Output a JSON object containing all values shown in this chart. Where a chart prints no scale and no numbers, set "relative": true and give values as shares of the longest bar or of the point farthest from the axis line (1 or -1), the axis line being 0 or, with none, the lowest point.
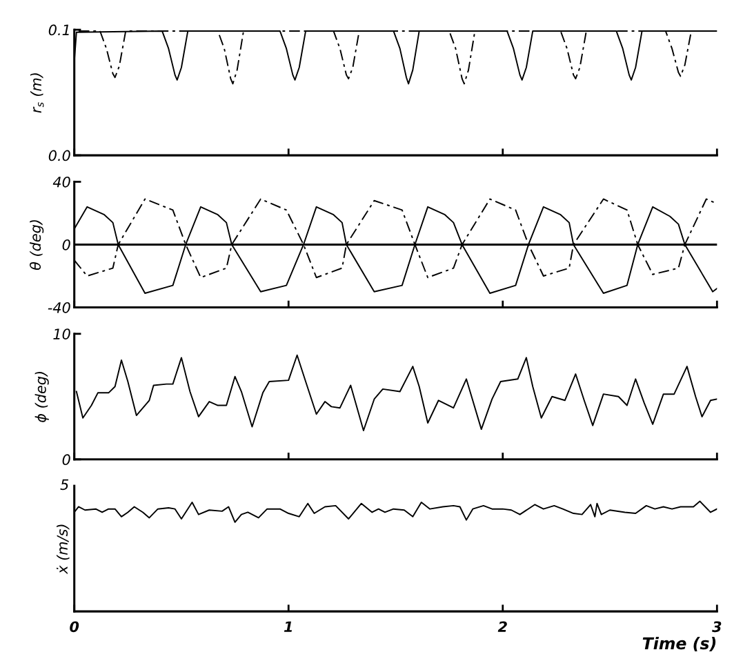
{
  "chart_data": [
    {
      "type": "line",
      "ylabel": "r$_{s}$ (m)",
      "xlim": [
        0,
        3
      ],
      "xticks": [
        0,
        1,
        2,
        3
      ],
      "ylim": [
        0,
        0.1
      ],
      "yticks": [
        {
          "value": 0,
          "label": "0.0"
        },
        0.1
      ],
      "tick_labels": "y",
      "grid": false,
      "series": [
        {
          "color": "#000000",
          "line_style": "solid",
          "x": [
            0,
            0.01,
            0.41,
            0.44,
            0.47,
            0.48,
            0.5,
            0.53,
            0.96,
            0.99,
            1.02,
            1.03,
            1.05,
            1.08,
            1.49,
            1.52,
            1.55,
            1.56,
            1.58,
            1.61,
            2.02,
            2.05,
            2.08,
            2.09,
            2.11,
            2.14,
            2.53,
            2.56,
            2.59,
            2.6,
            2.62,
            2.65,
            3.0
          ],
          "values": [
            0.075,
            0.098,
            0.099,
            0.085,
            0.064,
            0.06,
            0.07,
            0.099,
            0.099,
            0.085,
            0.064,
            0.06,
            0.07,
            0.099,
            0.099,
            0.085,
            0.062,
            0.057,
            0.068,
            0.099,
            0.099,
            0.085,
            0.064,
            0.06,
            0.07,
            0.099,
            0.099,
            0.085,
            0.064,
            0.06,
            0.07,
            0.099,
            0.099
          ]
        },
        {
          "color": "#000000",
          "line_style": "dashed",
          "x": [
            0.02,
            0.12,
            0.15,
            0.18,
            0.19,
            0.21,
            0.24,
            0.67,
            0.7,
            0.73,
            0.74,
            0.76,
            0.79,
            1.21,
            1.24,
            1.27,
            1.28,
            1.3,
            1.33,
            1.75,
            1.78,
            1.81,
            1.82,
            1.84,
            1.87,
            2.27,
            2.3,
            2.33,
            2.34,
            2.36,
            2.39,
            2.76,
            2.79,
            2.82,
            2.83,
            2.85,
            2.88,
            3.0
          ],
          "values": [
            0.099,
            0.099,
            0.085,
            0.065,
            0.062,
            0.071,
            0.099,
            0.099,
            0.085,
            0.061,
            0.057,
            0.068,
            0.099,
            0.099,
            0.085,
            0.064,
            0.061,
            0.07,
            0.099,
            0.099,
            0.085,
            0.061,
            0.057,
            0.068,
            0.099,
            0.099,
            0.085,
            0.064,
            0.061,
            0.07,
            0.099,
            0.099,
            0.085,
            0.066,
            0.063,
            0.072,
            0.099,
            0.099
          ]
        }
      ]
    },
    {
      "type": "line",
      "ylabel": "θ (deg)",
      "xlim": [
        0,
        3
      ],
      "xticks": [
        0,
        1,
        2,
        3
      ],
      "ylim": [
        -40,
        40
      ],
      "yticks": [
        -40,
        0,
        40
      ],
      "tick_labels": "y",
      "grid": false,
      "ref_lines": [
        {
          "axis": "y",
          "value": 0,
          "color": "#000000",
          "line_style": "solid"
        }
      ],
      "series": [
        {
          "color": "#000000",
          "line_style": "solid",
          "x": [
            0,
            0.06,
            0.14,
            0.18,
            0.205,
            0.33,
            0.46,
            0.52,
            0.59,
            0.67,
            0.71,
            0.735,
            0.87,
            0.99,
            1.07,
            1.13,
            1.21,
            1.25,
            1.27,
            1.4,
            1.53,
            1.59,
            1.65,
            1.73,
            1.77,
            1.81,
            1.94,
            2.06,
            2.12,
            2.19,
            2.27,
            2.31,
            2.33,
            2.47,
            2.58,
            2.63,
            2.7,
            2.78,
            2.82,
            2.85,
            2.98,
            3.0
          ],
          "values": [
            10,
            24,
            19,
            14,
            0,
            -31,
            -26,
            0,
            24,
            19,
            14,
            0,
            -30,
            -26,
            0,
            24,
            19,
            14,
            0,
            -30,
            -26,
            0,
            24,
            19,
            14,
            0,
            -31,
            -26,
            0,
            24,
            19,
            14,
            0,
            -31,
            -26,
            0,
            24,
            18,
            13,
            0,
            -30,
            -28
          ]
        },
        {
          "color": "#000000",
          "line_style": "dashed",
          "x": [
            0,
            0.06,
            0.18,
            0.205,
            0.33,
            0.46,
            0.52,
            0.59,
            0.71,
            0.735,
            0.87,
            0.99,
            1.07,
            1.13,
            1.25,
            1.27,
            1.4,
            1.53,
            1.59,
            1.65,
            1.77,
            1.81,
            1.94,
            2.06,
            2.12,
            2.19,
            2.31,
            2.33,
            2.47,
            2.58,
            2.63,
            2.7,
            2.82,
            2.85,
            2.95,
            3.0
          ],
          "values": [
            -10,
            -20,
            -15,
            0,
            29,
            22,
            0,
            -21,
            -15,
            0,
            29,
            22,
            0,
            -21,
            -15,
            0,
            28,
            22,
            0,
            -21,
            -15,
            0,
            29,
            22,
            0,
            -20,
            -15,
            0,
            29,
            22,
            0,
            -19,
            -15,
            0,
            29,
            26
          ]
        }
      ]
    },
    {
      "type": "line",
      "ylabel": "ϕ (deg)",
      "xlim": [
        0,
        3
      ],
      "xticks": [
        0,
        1,
        2,
        3
      ],
      "ylim": [
        0,
        10
      ],
      "yticks": [
        0,
        10
      ],
      "tick_labels": "y",
      "grid": false,
      "series": [
        {
          "color": "#000000",
          "line_style": "solid",
          "x": [
            0.01,
            0.04,
            0.08,
            0.11,
            0.16,
            0.19,
            0.22,
            0.25,
            0.29,
            0.35,
            0.37,
            0.43,
            0.46,
            0.5,
            0.54,
            0.58,
            0.63,
            0.67,
            0.71,
            0.75,
            0.78,
            0.83,
            0.88,
            0.91,
            1.0,
            1.04,
            1.08,
            1.13,
            1.17,
            1.2,
            1.24,
            1.29,
            1.35,
            1.4,
            1.44,
            1.52,
            1.58,
            1.61,
            1.65,
            1.7,
            1.77,
            1.83,
            1.9,
            1.95,
            1.99,
            2.07,
            2.11,
            2.14,
            2.18,
            2.23,
            2.29,
            2.34,
            2.38,
            2.42,
            2.47,
            2.54,
            2.58,
            2.62,
            2.66,
            2.7,
            2.75,
            2.8,
            2.86,
            2.9,
            2.93,
            2.97,
            3.0
          ],
          "values": [
            5.4,
            3.3,
            4.3,
            5.3,
            5.3,
            5.8,
            7.9,
            6.2,
            3.5,
            4.7,
            5.9,
            6.0,
            6.0,
            8.1,
            5.4,
            3.4,
            4.6,
            4.3,
            4.3,
            6.6,
            5.4,
            2.6,
            5.3,
            6.2,
            6.3,
            8.3,
            6.2,
            3.6,
            4.6,
            4.2,
            4.1,
            5.9,
            2.3,
            4.8,
            5.6,
            5.4,
            7.4,
            5.8,
            2.9,
            4.7,
            4.1,
            6.4,
            2.4,
            4.8,
            6.2,
            6.4,
            8.1,
            5.8,
            3.3,
            5.0,
            4.7,
            6.8,
            4.7,
            2.7,
            5.2,
            5.0,
            4.3,
            6.4,
            4.5,
            2.8,
            5.2,
            5.2,
            7.4,
            5.0,
            3.4,
            4.7,
            4.8
          ]
        }
      ]
    },
    {
      "type": "line",
      "ylabel": "ẋ (m/s)",
      "xlabel": "Time (s)",
      "xlim": [
        0,
        3
      ],
      "xticks": [
        0,
        1,
        2,
        3
      ],
      "relative": true,
      "annotations": [
        "5"
      ],
      "grid": false,
      "series": [
        {
          "color": "#000000",
          "line_style": "solid",
          "x": [
            0,
            0.02,
            0.05,
            0.1,
            0.13,
            0.16,
            0.19,
            0.22,
            0.25,
            0.28,
            0.32,
            0.35,
            0.39,
            0.44,
            0.47,
            0.5,
            0.55,
            0.58,
            0.63,
            0.69,
            0.72,
            0.75,
            0.78,
            0.81,
            0.86,
            0.9,
            0.96,
            1.0,
            1.05,
            1.09,
            1.12,
            1.17,
            1.22,
            1.28,
            1.34,
            1.39,
            1.42,
            1.45,
            1.49,
            1.54,
            1.58,
            1.62,
            1.66,
            1.72,
            1.77,
            1.8,
            1.83,
            1.86,
            1.91,
            1.95,
            2.0,
            2.04,
            2.08,
            2.15,
            2.19,
            2.24,
            2.28,
            2.33,
            2.37,
            2.41,
            2.43,
            2.44,
            2.46,
            2.5,
            2.57,
            2.62,
            2.67,
            2.71,
            2.75,
            2.79,
            2.83,
            2.89,
            2.92,
            2.97,
            3.0
          ],
          "values": [
            0.9,
            0.95,
            0.92,
            0.93,
            0.9,
            0.93,
            0.93,
            0.86,
            0.9,
            0.95,
            0.9,
            0.85,
            0.93,
            0.94,
            0.93,
            0.84,
            0.99,
            0.88,
            0.92,
            0.91,
            0.95,
            0.81,
            0.88,
            0.9,
            0.85,
            0.93,
            0.93,
            0.89,
            0.86,
            0.98,
            0.89,
            0.95,
            0.96,
            0.84,
            0.98,
            0.9,
            0.93,
            0.9,
            0.93,
            0.92,
            0.86,
            0.99,
            0.93,
            0.95,
            0.96,
            0.95,
            0.83,
            0.93,
            0.96,
            0.93,
            0.93,
            0.92,
            0.88,
            0.97,
            0.93,
            0.96,
            0.93,
            0.89,
            0.88,
            0.97,
            0.86,
            0.98,
            0.88,
            0.92,
            0.9,
            0.89,
            0.96,
            0.93,
            0.95,
            0.93,
            0.95,
            0.95,
            1,
            0.9,
            0.93
          ]
        }
      ]
    }
  ]
}
